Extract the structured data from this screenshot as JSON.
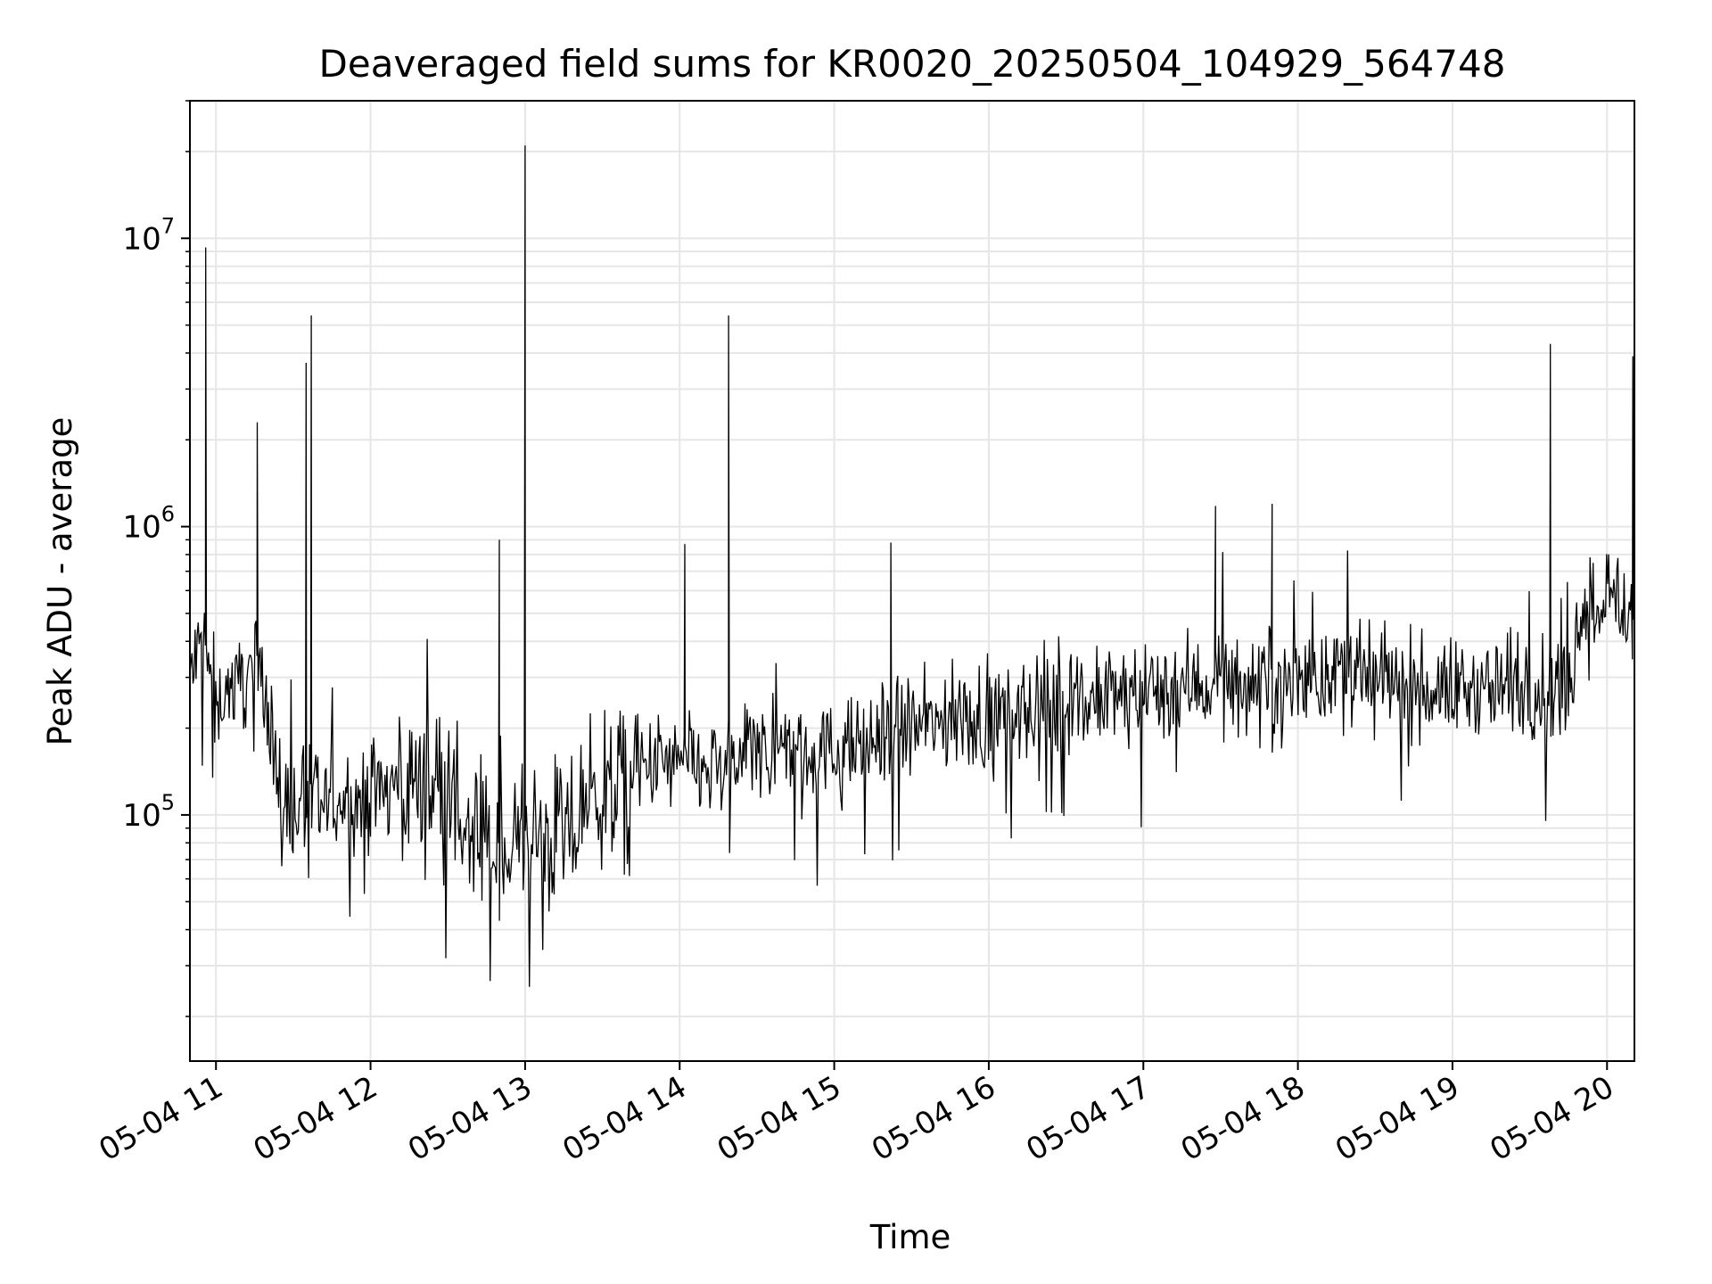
{
  "chart_data": {
    "type": "line",
    "title": "Deaveraged field sums for KR0020_20250504_104929_564748",
    "xlabel": "Time",
    "ylabel": "Peak ADU - average",
    "yscale": "log",
    "ylim": [
      14000,
      30000000
    ],
    "xlim": [
      "05-04 10:49:53",
      "05-04 20:10:38"
    ],
    "grid": "on (major and minor)",
    "legend": "none",
    "colors": {
      "line": "#000000",
      "grid": "#e6e6e6",
      "axes": "#000000"
    },
    "x_ticks": [
      {
        "label": "05-04 11",
        "time": "05-04 11:00"
      },
      {
        "label": "05-04 12",
        "time": "05-04 12:00"
      },
      {
        "label": "05-04 13",
        "time": "05-04 13:00"
      },
      {
        "label": "05-04 14",
        "time": "05-04 14:00"
      },
      {
        "label": "05-04 15",
        "time": "05-04 15:00"
      },
      {
        "label": "05-04 16",
        "time": "05-04 16:00"
      },
      {
        "label": "05-04 17",
        "time": "05-04 17:00"
      },
      {
        "label": "05-04 18",
        "time": "05-04 18:00"
      },
      {
        "label": "05-04 19",
        "time": "05-04 19:00"
      },
      {
        "label": "05-04 20",
        "time": "05-04 20:00"
      }
    ],
    "y_ticks": [
      {
        "base": "10",
        "exp": "5",
        "value": 100000
      },
      {
        "base": "10",
        "exp": "6",
        "value": 1000000
      },
      {
        "base": "10",
        "exp": "7",
        "value": 10000000
      }
    ],
    "series": [
      {
        "x": [
          "05-04 10:50",
          "05-04 10:55",
          "05-04 11:00",
          "05-04 11:10",
          "05-04 11:15",
          "05-04 11:20",
          "05-04 11:25",
          "05-04 11:30",
          "05-04 11:40",
          "05-04 11:50",
          "05-04 12:00",
          "05-04 12:10",
          "05-04 12:20",
          "05-04 12:30",
          "05-04 12:40",
          "05-04 12:50",
          "05-04 13:00",
          "05-04 13:10",
          "05-04 13:20",
          "05-04 13:30",
          "05-04 13:40",
          "05-04 13:50",
          "05-04 14:00",
          "05-04 14:15",
          "05-04 14:30",
          "05-04 14:45",
          "05-04 15:00",
          "05-04 15:15",
          "05-04 15:30",
          "05-04 15:45",
          "05-04 16:00",
          "05-04 16:15",
          "05-04 16:30",
          "05-04 16:45",
          "05-04 17:00",
          "05-04 17:15",
          "05-04 17:30",
          "05-04 17:45",
          "05-04 18:00",
          "05-04 18:15",
          "05-04 18:30",
          "05-04 18:45",
          "05-04 19:00",
          "05-04 19:15",
          "05-04 19:30",
          "05-04 19:45",
          "05-04 19:50",
          "05-04 20:00",
          "05-04 20:10"
        ],
        "values": [
          300000,
          400000,
          250000,
          300000,
          320000,
          280000,
          100000,
          110000,
          105000,
          115000,
          110000,
          130000,
          130000,
          120000,
          80000,
          70000,
          85000,
          80000,
          90000,
          120000,
          130000,
          150000,
          150000,
          140000,
          160000,
          170000,
          160000,
          180000,
          200000,
          210000,
          220000,
          230000,
          240000,
          250000,
          270000,
          280000,
          290000,
          280000,
          300000,
          290000,
          290000,
          280000,
          270000,
          280000,
          270000,
          260000,
          550000,
          600000,
          480000
        ]
      }
    ],
    "spikes": [
      {
        "time": "05-04 10:56",
        "value": 9300000
      },
      {
        "time": "05-04 11:16",
        "value": 2300000
      },
      {
        "time": "05-04 11:35",
        "value": 3700000
      },
      {
        "time": "05-04 11:37",
        "value": 5400000
      },
      {
        "time": "05-04 12:50",
        "value": 900000
      },
      {
        "time": "05-04 13:00",
        "value": 21000000
      },
      {
        "time": "05-04 14:02",
        "value": 870000
      },
      {
        "time": "05-04 14:19",
        "value": 5400000
      },
      {
        "time": "05-04 15:22",
        "value": 880000
      },
      {
        "time": "05-04 17:28",
        "value": 1180000
      },
      {
        "time": "05-04 17:50",
        "value": 1200000
      },
      {
        "time": "05-04 19:38",
        "value": 4300000
      },
      {
        "time": "05-04 20:10",
        "value": 3900000
      }
    ]
  }
}
